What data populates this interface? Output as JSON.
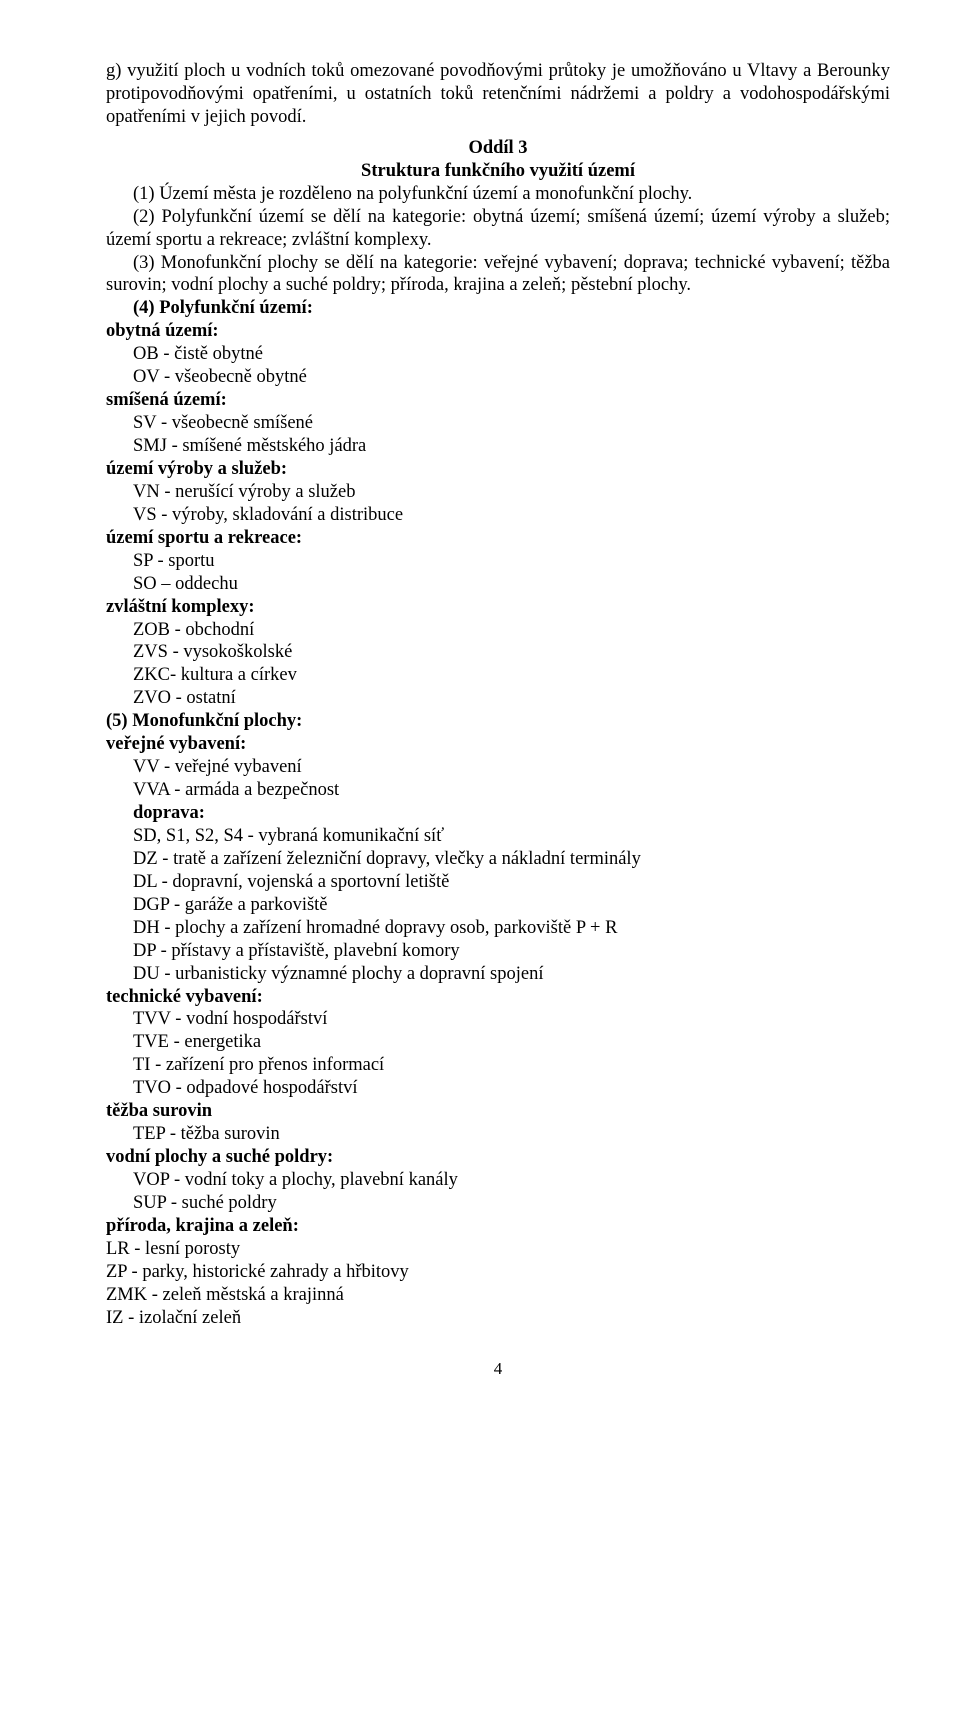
{
  "para_g": "g) využití ploch u vodních toků omezované povodňovými průtoky je umožňováno u Vltavy a Berounky protipovodňovými opatřeními, u ostatních toků retenčními nádržemi a poldry a vodohospodářskými opatřeními v jejich povodí.",
  "oddil_label": "Oddíl 3",
  "oddil_title": "Struktura funkčního využití území",
  "para_1": "(1) Území města je rozděleno na polyfunkční území a monofunkční plochy.",
  "para_2": "(2) Polyfunkční území se dělí na kategorie: obytná území; smíšená území; území výroby a služeb; území sportu a rekreace; zvláštní komplexy.",
  "para_3": "(3) Monofunkční plochy se dělí na kategorie: veřejné vybavení; doprava; technické vybavení; těžba surovin; vodní plochy a suché poldry; příroda, krajina a zeleň; pěstební plochy.",
  "para_4_head": "(4) Polyfunkční území:",
  "poly": {
    "obytna": {
      "head": "obytná území:",
      "l1": "OB - čistě obytné",
      "l2": "OV - všeobecně obytné"
    },
    "smisena": {
      "head": "smíšená území:",
      "l1": "SV - všeobecně smíšené",
      "l2": "SMJ - smíšené městského jádra"
    },
    "vyroby": {
      "head": "území výroby a služeb:",
      "l1": "VN - nerušící výroby a služeb",
      "l2": "VS - výroby, skladování a distribuce"
    },
    "sportu": {
      "head": "území sportu a rekreace:",
      "l1": "SP - sportu",
      "l2": "SO – oddechu"
    },
    "zvlastni": {
      "head": "zvláštní komplexy:",
      "l1": "ZOB - obchodní",
      "l2": "ZVS - vysokoškolské",
      "l3": "ZKC- kultura a církev",
      "l4": "ZVO - ostatní"
    }
  },
  "para_5_head": "(5) Monofunkční plochy:",
  "mono": {
    "verejne": {
      "head": "veřejné vybavení:",
      "l1": "VV - veřejné vybavení",
      "l2": "VVA - armáda a bezpečnost"
    },
    "doprava": {
      "head": "doprava:",
      "l1": "SD, S1, S2, S4 - vybraná komunikační síť",
      "l2": "DZ - tratě a zařízení železniční dopravy, vlečky a nákladní terminály",
      "l3": "DL - dopravní, vojenská a sportovní letiště",
      "l4": "DGP  - garáže a parkoviště",
      "l5": "DH - plochy a zařízení hromadné dopravy osob, parkoviště P + R",
      "l6": "DP - přístavy a přístaviště, plavební komory",
      "l7": "DU - urbanisticky významné plochy a  dopravní spojení"
    },
    "tech": {
      "head": "technické vybavení:",
      "l1": "TVV - vodní hospodářství",
      "l2": "TVE - energetika",
      "l3": "TI   - zařízení pro přenos informací",
      "l4": "TVO - odpadové hospodářství"
    },
    "tezba": {
      "head": "těžba surovin",
      "l1": "TEP - těžba surovin"
    },
    "vodni": {
      "head": "vodní plochy a suché poldry:",
      "l1": "VOP - vodní toky a plochy,  plavební kanály",
      "l2": "SUP - suché poldry"
    },
    "priroda": {
      "head": "příroda, krajina a zeleň:",
      "l1": "LR - lesní porosty",
      "l2": "ZP - parky, historické zahrady a hřbitovy",
      "l3": "ZMK - zeleň městská a krajinná",
      "l4": "IZ - izolační zeleň"
    }
  },
  "page_number": "4"
}
